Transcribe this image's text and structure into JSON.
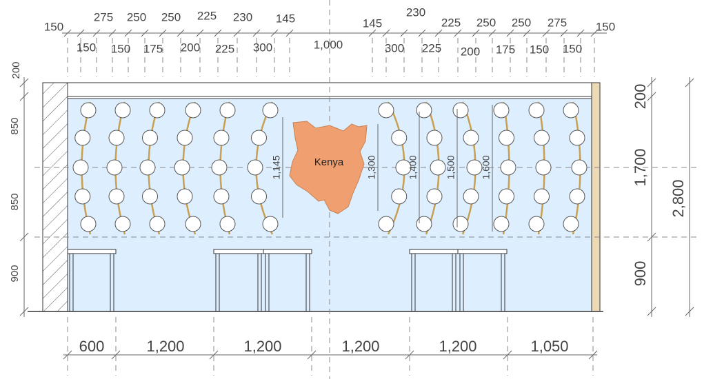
{
  "top_upper": [
    "150",
    "275",
    "250",
    "250",
    "225",
    "230",
    "145",
    "145",
    "230",
    "225",
    "250",
    "250",
    "275",
    "150"
  ],
  "top_lower": [
    "150",
    "150",
    "175",
    "200",
    "225",
    "300",
    "1,000",
    "300",
    "225",
    "200",
    "175",
    "150",
    "150"
  ],
  "left": [
    "200",
    "850",
    "850",
    "900"
  ],
  "right": [
    "200",
    "1,700",
    "900"
  ],
  "overall": "2,800",
  "inner": [
    "1,145",
    "1,300",
    "1,400",
    "1,500",
    "1,600"
  ],
  "bottom": [
    "600",
    "1,200",
    "1,200",
    "1,200",
    "1,200",
    "1,050"
  ],
  "map_label": "Kenya"
}
